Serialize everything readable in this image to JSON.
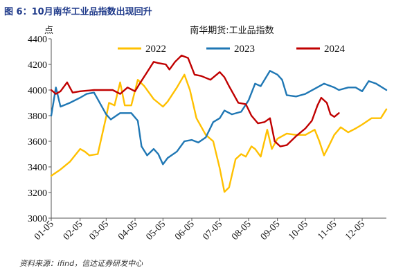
{
  "figure_title": "图 6：10月南华工业品指数出现回升",
  "source_note": "资料来源：ifind，信达证券研发中心",
  "chart_data": {
    "type": "line",
    "title": "南华期货:工业品指数",
    "unit_label": "点",
    "xlabel": "",
    "ylabel": "",
    "ylim": [
      3000,
      4400
    ],
    "yticks": [
      3000,
      3200,
      3400,
      3600,
      3800,
      4000,
      4200,
      4400
    ],
    "xticks": [
      "01-05",
      "02-05",
      "03-05",
      "04-05",
      "05-05",
      "06-05",
      "07-05",
      "08-05",
      "09-05",
      "10-05",
      "11-05",
      "12-05"
    ],
    "x_range": [
      "01-05",
      "12-31"
    ],
    "grid": false,
    "legend_position": "top",
    "series": [
      {
        "name": "2022",
        "color": "#FFC000",
        "points": [
          [
            "01-05",
            3330
          ],
          [
            "01-15",
            3380
          ],
          [
            "01-25",
            3440
          ],
          [
            "02-05",
            3540
          ],
          [
            "02-10",
            3520
          ],
          [
            "02-15",
            3490
          ],
          [
            "02-24",
            3500
          ],
          [
            "03-05",
            3790
          ],
          [
            "03-08",
            3900
          ],
          [
            "03-14",
            3880
          ],
          [
            "03-20",
            4060
          ],
          [
            "03-25",
            3880
          ],
          [
            "04-01",
            3880
          ],
          [
            "04-08",
            4080
          ],
          [
            "04-15",
            4030
          ],
          [
            "04-25",
            3930
          ],
          [
            "05-05",
            3870
          ],
          [
            "05-10",
            3910
          ],
          [
            "05-20",
            4020
          ],
          [
            "05-28",
            4120
          ],
          [
            "06-03",
            4000
          ],
          [
            "06-10",
            3780
          ],
          [
            "06-20",
            3650
          ],
          [
            "06-28",
            3600
          ],
          [
            "07-05",
            3390
          ],
          [
            "07-10",
            3205
          ],
          [
            "07-15",
            3240
          ],
          [
            "07-22",
            3460
          ],
          [
            "07-28",
            3500
          ],
          [
            "08-02",
            3480
          ],
          [
            "08-08",
            3560
          ],
          [
            "08-12",
            3540
          ],
          [
            "08-18",
            3480
          ],
          [
            "08-25",
            3690
          ],
          [
            "08-30",
            3540
          ],
          [
            "09-05",
            3620
          ],
          [
            "09-15",
            3660
          ],
          [
            "09-25",
            3650
          ],
          [
            "10-05",
            3650
          ],
          [
            "10-15",
            3690
          ],
          [
            "10-20",
            3600
          ],
          [
            "10-25",
            3490
          ],
          [
            "10-30",
            3560
          ],
          [
            "11-05",
            3650
          ],
          [
            "11-12",
            3710
          ],
          [
            "11-20",
            3670
          ],
          [
            "11-28",
            3700
          ],
          [
            "12-05",
            3730
          ],
          [
            "12-15",
            3780
          ],
          [
            "12-25",
            3780
          ],
          [
            "12-31",
            3850
          ]
        ]
      },
      {
        "name": "2023",
        "color": "#1F77B4",
        "points": [
          [
            "01-05",
            3800
          ],
          [
            "01-10",
            4020
          ],
          [
            "01-15",
            3870
          ],
          [
            "01-25",
            3900
          ],
          [
            "02-05",
            3940
          ],
          [
            "02-12",
            3970
          ],
          [
            "02-20",
            3980
          ],
          [
            "03-05",
            3810
          ],
          [
            "03-10",
            3770
          ],
          [
            "03-20",
            3820
          ],
          [
            "04-01",
            3820
          ],
          [
            "04-08",
            3760
          ],
          [
            "04-12",
            3560
          ],
          [
            "04-18",
            3490
          ],
          [
            "04-25",
            3540
          ],
          [
            "04-30",
            3500
          ],
          [
            "05-05",
            3420
          ],
          [
            "05-10",
            3470
          ],
          [
            "05-20",
            3520
          ],
          [
            "05-28",
            3600
          ],
          [
            "06-05",
            3610
          ],
          [
            "06-12",
            3590
          ],
          [
            "06-20",
            3630
          ],
          [
            "06-28",
            3750
          ],
          [
            "07-05",
            3780
          ],
          [
            "07-10",
            3840
          ],
          [
            "07-18",
            3810
          ],
          [
            "07-28",
            3830
          ],
          [
            "08-05",
            3920
          ],
          [
            "08-12",
            4050
          ],
          [
            "08-18",
            4030
          ],
          [
            "08-28",
            4150
          ],
          [
            "09-05",
            4120
          ],
          [
            "09-10",
            4080
          ],
          [
            "09-15",
            3960
          ],
          [
            "09-25",
            3950
          ],
          [
            "10-05",
            3970
          ],
          [
            "10-15",
            4010
          ],
          [
            "10-25",
            4050
          ],
          [
            "11-05",
            4020
          ],
          [
            "11-10",
            4000
          ],
          [
            "11-20",
            4020
          ],
          [
            "11-28",
            4020
          ],
          [
            "12-05",
            3990
          ],
          [
            "12-12",
            4070
          ],
          [
            "12-20",
            4050
          ],
          [
            "12-31",
            4000
          ]
        ]
      },
      {
        "name": "2024",
        "color": "#C00000",
        "points": [
          [
            "01-05",
            4000
          ],
          [
            "01-10",
            3970
          ],
          [
            "01-15",
            3990
          ],
          [
            "01-22",
            4060
          ],
          [
            "01-28",
            3980
          ],
          [
            "02-05",
            3990
          ],
          [
            "02-20",
            4000
          ],
          [
            "03-05",
            4000
          ],
          [
            "03-12",
            4000
          ],
          [
            "03-20",
            3970
          ],
          [
            "03-28",
            4020
          ],
          [
            "04-05",
            3990
          ],
          [
            "04-10",
            4050
          ],
          [
            "04-18",
            4140
          ],
          [
            "04-25",
            4220
          ],
          [
            "04-30",
            4210
          ],
          [
            "05-08",
            4200
          ],
          [
            "05-12",
            4160
          ],
          [
            "05-18",
            4220
          ],
          [
            "05-25",
            4270
          ],
          [
            "06-01",
            4250
          ],
          [
            "06-08",
            4120
          ],
          [
            "06-15",
            4110
          ],
          [
            "06-25",
            4080
          ],
          [
            "07-05",
            4140
          ],
          [
            "07-10",
            4100
          ],
          [
            "07-15",
            4030
          ],
          [
            "07-25",
            3900
          ],
          [
            "08-02",
            3890
          ],
          [
            "08-08",
            3800
          ],
          [
            "08-15",
            3740
          ],
          [
            "08-22",
            3750
          ],
          [
            "08-28",
            3780
          ],
          [
            "09-02",
            3600
          ],
          [
            "09-08",
            3560
          ],
          [
            "09-15",
            3570
          ],
          [
            "09-25",
            3640
          ],
          [
            "10-05",
            3700
          ],
          [
            "10-12",
            3760
          ],
          [
            "10-18",
            3880
          ],
          [
            "10-22",
            3940
          ],
          [
            "10-28",
            3900
          ],
          [
            "11-01",
            3810
          ],
          [
            "11-05",
            3790
          ],
          [
            "11-10",
            3820
          ]
        ]
      }
    ]
  }
}
